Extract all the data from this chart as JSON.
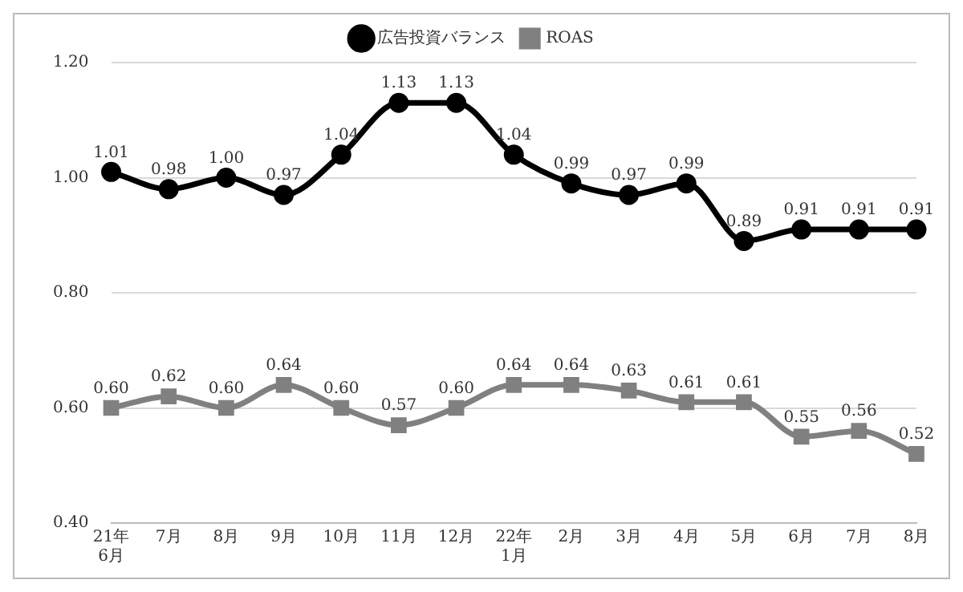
{
  "chart_data": {
    "type": "line",
    "categories": [
      "21年\n6月",
      "7月",
      "8月",
      "9月",
      "10月",
      "11月",
      "12月",
      "22年\n1月",
      "2月",
      "3月",
      "4月",
      "5月",
      "6月",
      "7月",
      "8月"
    ],
    "series": [
      {
        "name": "広告投資バランス",
        "color": "#000000",
        "marker": "circle",
        "values": [
          1.01,
          0.98,
          1.0,
          0.97,
          1.04,
          1.13,
          1.13,
          1.04,
          0.99,
          0.97,
          0.99,
          0.89,
          0.91,
          0.91,
          0.91
        ],
        "value_labels": [
          "1.01",
          "0.98",
          "1.00",
          "0.97",
          "1.04",
          "1.13",
          "1.13",
          "1.04",
          "0.99",
          "0.97",
          "0.99",
          "0.89",
          "0.91",
          "0.91",
          "0.91"
        ]
      },
      {
        "name": "ROAS",
        "color": "#808080",
        "marker": "square",
        "values": [
          0.6,
          0.62,
          0.6,
          0.64,
          0.6,
          0.57,
          0.6,
          0.64,
          0.64,
          0.63,
          0.61,
          0.61,
          0.55,
          0.56,
          0.52
        ],
        "value_labels": [
          "0.60",
          "0.62",
          "0.60",
          "0.64",
          "0.60",
          "0.57",
          "0.60",
          "0.64",
          "0.64",
          "0.63",
          "0.61",
          "0.61",
          "0.55",
          "0.56",
          "0.52"
        ]
      }
    ],
    "ylim": [
      0.4,
      1.2
    ],
    "yticks": [
      {
        "value": 0.4,
        "label": "0.40"
      },
      {
        "value": 0.6,
        "label": "0.60"
      },
      {
        "value": 0.8,
        "label": "0.80"
      },
      {
        "value": 1.0,
        "label": "1.00"
      },
      {
        "value": 1.2,
        "label": "1.20"
      }
    ],
    "grid": "y",
    "legend": "top",
    "line_style": "solid"
  }
}
